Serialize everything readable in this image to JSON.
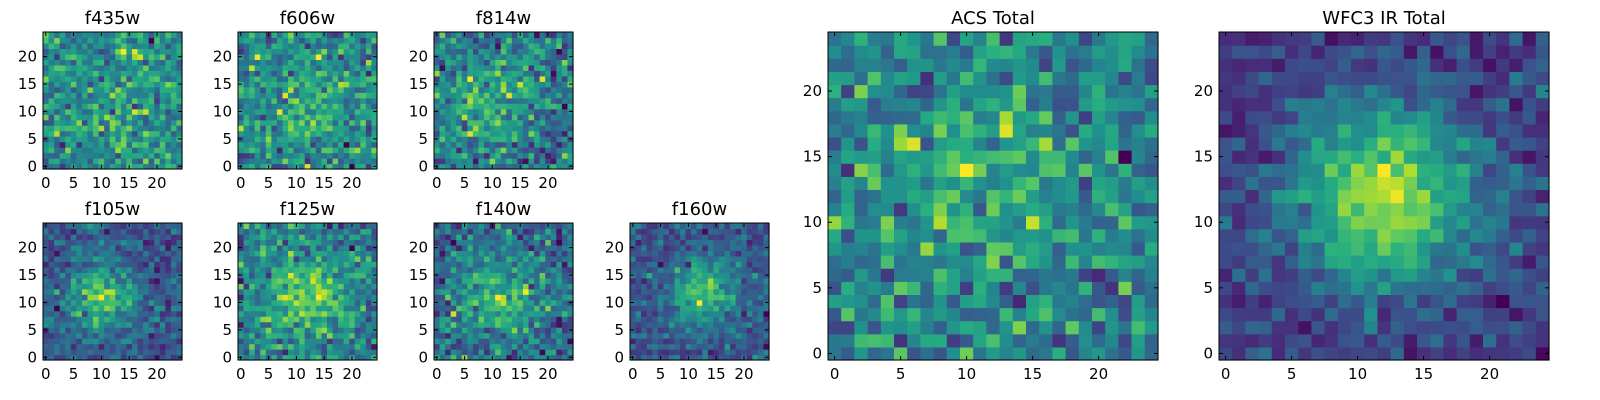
{
  "colormap": "viridis",
  "chart_data": [
    {
      "type": "heatmap",
      "title": "f435w",
      "grid_size": 25,
      "seed": 11,
      "blob": {
        "cx": 12,
        "cy": 12,
        "amp": 0.05,
        "sigma": 8
      },
      "noise": 1.0,
      "xticks": [
        0,
        5,
        10,
        15,
        20
      ],
      "yticks": [
        0,
        5,
        10,
        15,
        20
      ],
      "xlim": [
        -0.5,
        24.5
      ],
      "ylim": [
        -0.5,
        24.5
      ]
    },
    {
      "type": "heatmap",
      "title": "f606w",
      "grid_size": 25,
      "seed": 22,
      "blob": {
        "cx": 12,
        "cy": 11,
        "amp": 0.12,
        "sigma": 5
      },
      "noise": 1.0,
      "xticks": [
        0,
        5,
        10,
        15,
        20
      ],
      "yticks": [
        0,
        5,
        10,
        15,
        20
      ],
      "xlim": [
        -0.5,
        24.5
      ],
      "ylim": [
        -0.5,
        24.5
      ]
    },
    {
      "type": "heatmap",
      "title": "f814w",
      "grid_size": 25,
      "seed": 33,
      "blob": {
        "cx": 10,
        "cy": 12,
        "amp": 0.2,
        "sigma": 5
      },
      "noise": 1.0,
      "xticks": [
        0,
        5,
        10,
        15,
        20
      ],
      "yticks": [
        0,
        5,
        10,
        15,
        20
      ],
      "xlim": [
        -0.5,
        24.5
      ],
      "ylim": [
        -0.5,
        24.5
      ]
    },
    {
      "type": "heatmap",
      "title": "f105w",
      "grid_size": 25,
      "seed": 44,
      "blob": {
        "cx": 10,
        "cy": 11,
        "amp": 0.45,
        "sigma": 4
      },
      "noise": 0.8,
      "xticks": [
        0,
        5,
        10,
        15,
        20
      ],
      "yticks": [
        0,
        5,
        10,
        15,
        20
      ],
      "xlim": [
        -0.5,
        24.5
      ],
      "ylim": [
        -0.5,
        24.5
      ]
    },
    {
      "type": "heatmap",
      "title": "f125w",
      "grid_size": 25,
      "seed": 55,
      "blob": {
        "cx": 12,
        "cy": 11,
        "amp": 0.3,
        "sigma": 5
      },
      "noise": 0.9,
      "xticks": [
        0,
        5,
        10,
        15,
        20
      ],
      "yticks": [
        0,
        5,
        10,
        15,
        20
      ],
      "xlim": [
        -0.5,
        24.5
      ],
      "ylim": [
        -0.5,
        24.5
      ]
    },
    {
      "type": "heatmap",
      "title": "f140w",
      "grid_size": 25,
      "seed": 66,
      "blob": {
        "cx": 11,
        "cy": 11,
        "amp": 0.3,
        "sigma": 5
      },
      "noise": 0.9,
      "xticks": [
        0,
        5,
        10,
        15,
        20
      ],
      "yticks": [
        0,
        5,
        10,
        15,
        20
      ],
      "xlim": [
        -0.5,
        24.5
      ],
      "ylim": [
        -0.5,
        24.5
      ]
    },
    {
      "type": "heatmap",
      "title": "f160w",
      "grid_size": 25,
      "seed": 77,
      "blob": {
        "cx": 13,
        "cy": 12,
        "amp": 0.45,
        "sigma": 4
      },
      "noise": 0.8,
      "xticks": [
        0,
        5,
        10,
        15,
        20
      ],
      "yticks": [
        0,
        5,
        10,
        15,
        20
      ],
      "xlim": [
        -0.5,
        24.5
      ],
      "ylim": [
        -0.5,
        24.5
      ]
    },
    {
      "type": "heatmap",
      "title": "ACS Total",
      "grid_size": 25,
      "seed": 88,
      "blob": {
        "cx": 11,
        "cy": 12,
        "amp": 0.15,
        "sigma": 6
      },
      "noise": 1.0,
      "xticks": [
        0,
        5,
        10,
        15,
        20
      ],
      "yticks": [
        0,
        5,
        10,
        15,
        20
      ],
      "xlim": [
        -0.5,
        24.5
      ],
      "ylim": [
        -0.5,
        24.5
      ]
    },
    {
      "type": "heatmap",
      "title": "WFC3 IR Total",
      "grid_size": 25,
      "seed": 99,
      "blob": {
        "cx": 12,
        "cy": 12,
        "amp": 0.6,
        "sigma": 5
      },
      "noise": 0.6,
      "xticks": [
        0,
        5,
        10,
        15,
        20
      ],
      "yticks": [
        0,
        5,
        10,
        15,
        20
      ],
      "xlim": [
        -0.5,
        24.5
      ],
      "ylim": [
        -0.5,
        24.5
      ]
    }
  ]
}
